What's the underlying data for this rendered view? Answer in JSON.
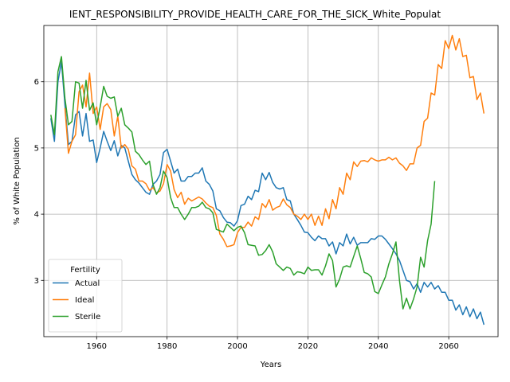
{
  "chart_data": {
    "type": "line",
    "title": "IENT_RESPONSIBILITY_PROVIDE_HEALTH_CARE_FOR_THE_SICK_White_Populat",
    "xlabel": "Years",
    "ylabel": "% of White Population",
    "xlim": [
      1945,
      2074
    ],
    "ylim": [
      2.15,
      6.85
    ],
    "xticks": [
      1960,
      1980,
      2000,
      2020,
      2040,
      2060
    ],
    "yticks": [
      3,
      4,
      5,
      6
    ],
    "grid": true,
    "legend": {
      "title": "Fertility",
      "placement": "lower-left"
    },
    "series": [
      {
        "name": "Actual",
        "color": "#1f77b4",
        "x": [
          1947,
          1948,
          1949,
          1950,
          1951,
          1952,
          1953,
          1954,
          1955,
          1956,
          1957,
          1958,
          1959,
          1960,
          1961,
          1962,
          1963,
          1964,
          1965,
          1966,
          1967,
          1968,
          1969,
          1970,
          1971,
          1972,
          1973,
          1974,
          1975,
          1976,
          1977,
          1978,
          1979,
          1980,
          1981,
          1982,
          1983,
          1984,
          1985,
          1986,
          1987,
          1988,
          1989,
          1990,
          1991,
          1992,
          1993,
          1994,
          1995,
          1996,
          1997,
          1998,
          1999,
          2000,
          2001,
          2002,
          2003,
          2004,
          2005,
          2006,
          2007,
          2008,
          2009,
          2010,
          2011,
          2012,
          2013,
          2014,
          2015,
          2016,
          2017,
          2018,
          2019,
          2020,
          2021,
          2022,
          2023,
          2024,
          2025,
          2026,
          2027,
          2028,
          2029,
          2030,
          2031,
          2032,
          2033,
          2034,
          2035,
          2036,
          2037,
          2038,
          2039,
          2040,
          2041,
          2042,
          2043,
          2044,
          2045,
          2046,
          2047,
          2048,
          2049,
          2050,
          2051,
          2052,
          2053,
          2054,
          2055,
          2056,
          2057,
          2058,
          2059,
          2060,
          2061,
          2062,
          2063,
          2064,
          2065,
          2066,
          2067,
          2068,
          2069,
          2070
        ],
        "y": [
          5.45,
          5.1,
          6.0,
          6.3,
          5.65,
          5.05,
          5.1,
          5.5,
          5.55,
          5.18,
          5.52,
          5.1,
          5.12,
          4.78,
          5.0,
          5.25,
          5.1,
          4.96,
          5.11,
          4.88,
          5.04,
          5.0,
          4.8,
          4.6,
          4.52,
          4.47,
          4.4,
          4.33,
          4.3,
          4.45,
          4.5,
          4.6,
          4.93,
          4.98,
          4.8,
          4.62,
          4.68,
          4.5,
          4.5,
          4.57,
          4.57,
          4.62,
          4.62,
          4.7,
          4.5,
          4.45,
          4.35,
          4.08,
          4.05,
          3.95,
          3.88,
          3.87,
          3.82,
          3.9,
          4.13,
          4.15,
          4.27,
          4.22,
          4.36,
          4.34,
          4.62,
          4.52,
          4.63,
          4.48,
          4.4,
          4.38,
          4.4,
          4.22,
          4.2,
          4.0,
          3.92,
          3.83,
          3.73,
          3.72,
          3.65,
          3.6,
          3.67,
          3.63,
          3.63,
          3.52,
          3.58,
          3.4,
          3.57,
          3.52,
          3.7,
          3.55,
          3.65,
          3.53,
          3.57,
          3.57,
          3.57,
          3.63,
          3.62,
          3.67,
          3.67,
          3.62,
          3.55,
          3.48,
          3.4,
          3.3,
          3.15,
          3.0,
          2.98,
          2.87,
          2.95,
          2.82,
          2.97,
          2.9,
          2.97,
          2.87,
          2.92,
          2.82,
          2.82,
          2.7,
          2.7,
          2.55,
          2.63,
          2.48,
          2.6,
          2.45,
          2.57,
          2.42,
          2.52,
          2.33
        ]
      },
      {
        "name": "Ideal",
        "color": "#ff7f0e",
        "x": [
          1951,
          1952,
          1953,
          1954,
          1955,
          1956,
          1957,
          1958,
          1959,
          1960,
          1961,
          1962,
          1963,
          1964,
          1965,
          1966,
          1967,
          1968,
          1969,
          1970,
          1971,
          1972,
          1973,
          1974,
          1975,
          1976,
          1977,
          1978,
          1979,
          1980,
          1981,
          1982,
          1983,
          1984,
          1985,
          1986,
          1987,
          1988,
          1989,
          1990,
          1991,
          1992,
          1993,
          1994,
          1995,
          1996,
          1997,
          1998,
          1999,
          2000,
          2001,
          2002,
          2003,
          2004,
          2005,
          2006,
          2007,
          2008,
          2009,
          2010,
          2011,
          2012,
          2013,
          2014,
          2015,
          2016,
          2017,
          2018,
          2019,
          2020,
          2021,
          2022,
          2023,
          2024,
          2025,
          2026,
          2027,
          2028,
          2029,
          2030,
          2031,
          2032,
          2033,
          2034,
          2035,
          2036,
          2037,
          2038,
          2039,
          2040,
          2041,
          2042,
          2043,
          2044,
          2045,
          2046,
          2047,
          2048,
          2049,
          2050,
          2051,
          2052,
          2053,
          2054,
          2055,
          2056,
          2057,
          2058,
          2059,
          2060,
          2061,
          2062,
          2063,
          2064,
          2065,
          2066,
          2067,
          2068,
          2069,
          2070
        ],
        "y": [
          5.6,
          4.92,
          5.1,
          5.2,
          5.85,
          5.95,
          5.62,
          6.13,
          5.52,
          5.62,
          5.28,
          5.62,
          5.67,
          5.58,
          5.18,
          5.48,
          5.0,
          5.05,
          4.98,
          4.73,
          4.68,
          4.5,
          4.5,
          4.46,
          4.36,
          4.4,
          4.32,
          4.35,
          4.46,
          4.75,
          4.65,
          4.37,
          4.25,
          4.33,
          4.15,
          4.24,
          4.2,
          4.23,
          4.26,
          4.23,
          4.17,
          4.12,
          4.1,
          3.98,
          3.7,
          3.62,
          3.51,
          3.52,
          3.54,
          3.72,
          3.8,
          3.8,
          3.88,
          3.82,
          3.96,
          3.92,
          4.16,
          4.1,
          4.22,
          4.06,
          4.1,
          4.12,
          4.23,
          4.14,
          4.1,
          4.0,
          3.97,
          3.92,
          4.0,
          3.92,
          4.0,
          3.83,
          3.97,
          3.83,
          4.08,
          3.93,
          4.22,
          4.08,
          4.4,
          4.3,
          4.62,
          4.52,
          4.79,
          4.72,
          4.8,
          4.81,
          4.79,
          4.85,
          4.82,
          4.8,
          4.82,
          4.82,
          4.86,
          4.82,
          4.85,
          4.77,
          4.73,
          4.66,
          4.76,
          4.76,
          5.0,
          5.04,
          5.4,
          5.45,
          5.83,
          5.8,
          6.26,
          6.2,
          6.62,
          6.5,
          6.7,
          6.48,
          6.65,
          6.38,
          6.4,
          6.06,
          6.08,
          5.73,
          5.83,
          5.52
        ]
      },
      {
        "name": "Sterile",
        "color": "#2ca02c",
        "x": [
          1947,
          1948,
          1949,
          1950,
          1951,
          1952,
          1953,
          1954,
          1955,
          1956,
          1957,
          1958,
          1959,
          1960,
          1961,
          1962,
          1963,
          1964,
          1965,
          1966,
          1967,
          1968,
          1969,
          1970,
          1971,
          1972,
          1973,
          1974,
          1975,
          1976,
          1977,
          1978,
          1979,
          1980,
          1981,
          1982,
          1983,
          1984,
          1985,
          1986,
          1987,
          1988,
          1989,
          1990,
          1991,
          1992,
          1993,
          1994,
          1995,
          1996,
          1997,
          1998,
          1999,
          2000,
          2001,
          2002,
          2003,
          2004,
          2005,
          2006,
          2007,
          2008,
          2009,
          2010,
          2011,
          2012,
          2013,
          2014,
          2015,
          2016,
          2017,
          2018,
          2019,
          2020,
          2021,
          2022,
          2023,
          2024,
          2025,
          2026,
          2027,
          2028,
          2029,
          2030,
          2031,
          2032,
          2033,
          2034,
          2035,
          2036,
          2037,
          2038,
          2039,
          2040,
          2041,
          2042,
          2043,
          2044,
          2045,
          2046,
          2047,
          2048,
          2049,
          2050,
          2051,
          2052,
          2053,
          2054,
          2055,
          2056
        ],
        "y": [
          5.5,
          5.2,
          6.15,
          6.38,
          5.75,
          5.35,
          5.4,
          6.0,
          5.98,
          5.6,
          6.02,
          5.57,
          5.68,
          5.35,
          5.62,
          5.93,
          5.78,
          5.75,
          5.77,
          5.48,
          5.6,
          5.35,
          5.3,
          5.24,
          4.95,
          4.9,
          4.82,
          4.75,
          4.8,
          4.45,
          4.3,
          4.4,
          4.65,
          4.55,
          4.25,
          4.1,
          4.1,
          4.0,
          3.92,
          4.0,
          4.1,
          4.1,
          4.12,
          4.18,
          4.1,
          4.08,
          4.02,
          3.77,
          3.75,
          3.73,
          3.85,
          3.8,
          3.75,
          3.8,
          3.82,
          3.72,
          3.54,
          3.53,
          3.52,
          3.38,
          3.39,
          3.45,
          3.54,
          3.43,
          3.25,
          3.2,
          3.15,
          3.2,
          3.18,
          3.08,
          3.13,
          3.12,
          3.1,
          3.2,
          3.15,
          3.16,
          3.16,
          3.08,
          3.22,
          3.4,
          3.3,
          2.9,
          3.02,
          3.2,
          3.22,
          3.2,
          3.36,
          3.52,
          3.33,
          3.12,
          3.1,
          3.05,
          2.83,
          2.8,
          2.93,
          3.05,
          3.25,
          3.4,
          3.58,
          3.0,
          2.57,
          2.73,
          2.57,
          2.72,
          2.9,
          3.35,
          3.2,
          3.6,
          3.85,
          4.5
        ]
      }
    ]
  }
}
